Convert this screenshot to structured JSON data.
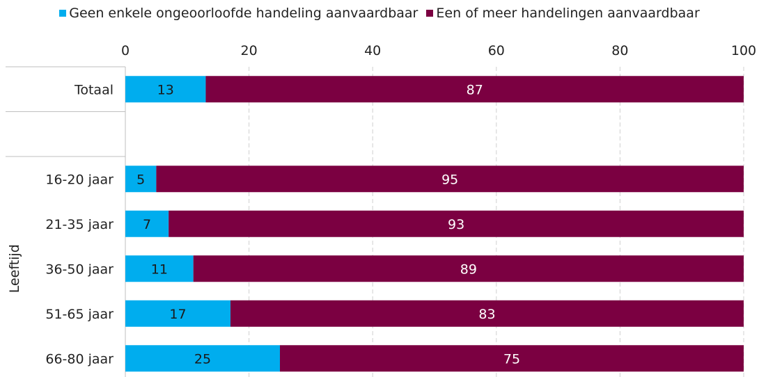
{
  "chart_data": {
    "type": "bar",
    "stacked": true,
    "orientation": "horizontal",
    "xlim": [
      0,
      100
    ],
    "x_ticks": [
      0,
      20,
      40,
      60,
      80,
      100
    ],
    "grid": true,
    "legend_position": "top",
    "group_label": "Leeftijd",
    "categories": [
      "Totaal",
      "",
      "16-20 jaar",
      "21-35 jaar",
      "36-50 jaar",
      "51-65 jaar",
      "66-80 jaar"
    ],
    "series": [
      {
        "name": "Geen enkele ongeoorloofde handeling aanvaardbaar",
        "color": "#00adee",
        "values": [
          13,
          null,
          5,
          7,
          11,
          17,
          25
        ]
      },
      {
        "name": "Een of meer handelingen aanvaardbaar",
        "color": "#7b0041",
        "values": [
          87,
          null,
          95,
          93,
          89,
          83,
          75
        ]
      }
    ]
  }
}
